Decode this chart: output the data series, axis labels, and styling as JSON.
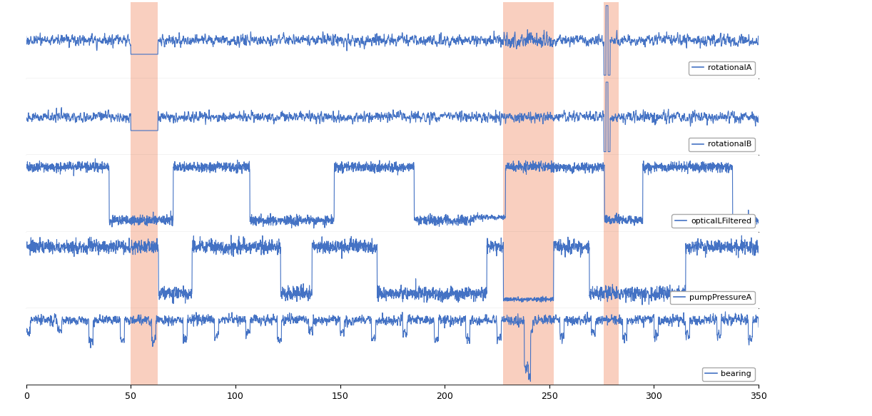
{
  "series_labels": [
    "rotationalA",
    "rotationalB",
    "opticalLFiltered",
    "pumpPressureA",
    "bearing"
  ],
  "xlim": [
    0,
    350
  ],
  "xticks": [
    0,
    50,
    100,
    150,
    200,
    250,
    300,
    350
  ],
  "anomaly_regions": [
    {
      "xmin": 50,
      "xmax": 63
    },
    {
      "xmin": 228,
      "xmax": 252
    },
    {
      "xmin": 276,
      "xmax": 283
    }
  ],
  "anomaly_color": "#f4a080",
  "anomaly_alpha": 0.5,
  "line_color": "#4472c4",
  "line_width": 0.8,
  "n_points": 3500,
  "background_color": "#ffffff",
  "fig_width": 12.22,
  "fig_height": 5.83,
  "dpi": 100,
  "legend_fontsize": 8
}
